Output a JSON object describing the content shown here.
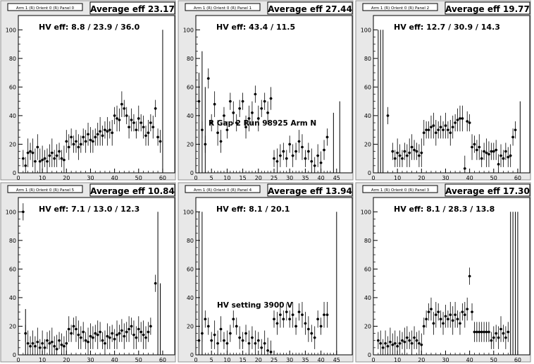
{
  "chart_data": [
    {
      "type": "scatter",
      "label": "Arm 1 (R) Orient 0 (R) Panel 0",
      "title": "Average eff 23.17",
      "hv_text": "HV eff:   8.8 / 23.9 / 36.0",
      "xlim": [
        0,
        65
      ],
      "ylim": [
        0,
        110
      ],
      "xticks": [
        0,
        10,
        20,
        30,
        40,
        50,
        60
      ],
      "yticks": [
        0,
        20,
        40,
        60,
        80,
        100
      ],
      "points": [
        [
          2,
          10
        ],
        [
          3,
          5
        ],
        [
          4,
          14
        ],
        [
          5,
          15
        ],
        [
          6,
          14
        ],
        [
          7,
          8
        ],
        [
          8,
          18
        ],
        [
          9,
          8
        ],
        [
          10,
          9
        ],
        [
          11,
          10
        ],
        [
          12,
          8
        ],
        [
          13,
          12
        ],
        [
          14,
          14
        ],
        [
          15,
          10
        ],
        [
          16,
          12
        ],
        [
          17,
          15
        ],
        [
          18,
          10
        ],
        [
          19,
          9
        ],
        [
          20,
          22
        ],
        [
          21,
          18
        ],
        [
          22,
          25
        ],
        [
          23,
          20
        ],
        [
          24,
          22
        ],
        [
          25,
          18
        ],
        [
          26,
          20
        ],
        [
          27,
          25
        ],
        [
          28,
          22
        ],
        [
          29,
          27
        ],
        [
          30,
          23
        ],
        [
          31,
          22
        ],
        [
          32,
          25
        ],
        [
          33,
          27
        ],
        [
          34,
          29
        ],
        [
          35,
          26
        ],
        [
          36,
          30
        ],
        [
          37,
          29
        ],
        [
          38,
          30
        ],
        [
          39,
          28
        ],
        [
          40,
          40
        ],
        [
          41,
          38
        ],
        [
          42,
          37
        ],
        [
          43,
          48
        ],
        [
          44,
          45
        ],
        [
          45,
          40
        ],
        [
          46,
          32
        ],
        [
          47,
          37
        ],
        [
          48,
          35
        ],
        [
          49,
          30
        ],
        [
          50,
          38
        ],
        [
          51,
          35
        ],
        [
          52,
          32
        ],
        [
          53,
          26
        ],
        [
          54,
          28
        ],
        [
          55,
          35
        ],
        [
          56,
          32
        ],
        [
          57,
          45
        ],
        [
          58,
          25
        ],
        [
          59,
          22
        ]
      ],
      "tall_bars": [
        [
          60,
          0,
          100
        ]
      ]
    },
    {
      "type": "scatter",
      "label": "Arm 1 (R) Orient 0 (R) Panel 1",
      "title": "Average eff 27.44",
      "hv_text": "HV eff:   43.4 / 11.5",
      "annotation": "R Gap 2 Run 98925 Arm N",
      "xlim": [
        0,
        50
      ],
      "ylim": [
        0,
        110
      ],
      "xticks": [
        0,
        5,
        10,
        15,
        20,
        25,
        30,
        35,
        40,
        45
      ],
      "yticks": [
        0,
        20,
        40,
        60,
        80,
        100
      ],
      "points": [
        [
          1,
          50
        ],
        [
          2,
          30
        ],
        [
          3,
          20
        ],
        [
          4,
          66
        ],
        [
          5,
          35
        ],
        [
          6,
          48
        ],
        [
          7,
          28
        ],
        [
          8,
          22
        ],
        [
          9,
          40
        ],
        [
          10,
          30
        ],
        [
          11,
          50
        ],
        [
          12,
          42
        ],
        [
          13,
          35
        ],
        [
          14,
          45
        ],
        [
          15,
          50
        ],
        [
          16,
          32
        ],
        [
          17,
          38
        ],
        [
          18,
          42
        ],
        [
          19,
          55
        ],
        [
          20,
          38
        ],
        [
          21,
          45
        ],
        [
          22,
          50
        ],
        [
          23,
          42
        ],
        [
          24,
          52
        ],
        [
          25,
          10
        ],
        [
          26,
          8
        ],
        [
          27,
          12
        ],
        [
          28,
          15
        ],
        [
          29,
          10
        ],
        [
          30,
          20
        ],
        [
          31,
          12
        ],
        [
          32,
          15
        ],
        [
          33,
          22
        ],
        [
          34,
          18
        ],
        [
          35,
          10
        ],
        [
          36,
          15
        ],
        [
          37,
          8
        ],
        [
          38,
          5
        ],
        [
          39,
          12
        ],
        [
          40,
          7
        ],
        [
          41,
          16
        ],
        [
          42,
          25
        ]
      ],
      "tall_bars": [
        [
          1,
          0,
          70
        ],
        [
          2,
          0,
          85
        ],
        [
          3,
          0,
          60
        ],
        [
          46,
          0,
          50
        ],
        [
          44,
          0,
          42
        ]
      ]
    },
    {
      "type": "scatter",
      "label": "Arm 1 (R) Orient 0 (R) Panel 2",
      "title": "Average eff 19.77",
      "hv_text": "HV eff:   12.7 / 30.9 / 14.3",
      "xlim": [
        0,
        65
      ],
      "ylim": [
        0,
        110
      ],
      "xticks": [
        0,
        10,
        20,
        30,
        40,
        50,
        60
      ],
      "yticks": [
        0,
        20,
        40,
        60,
        80,
        100
      ],
      "points": [
        [
          6,
          40
        ],
        [
          8,
          15
        ],
        [
          9,
          10
        ],
        [
          10,
          14
        ],
        [
          11,
          12
        ],
        [
          12,
          10
        ],
        [
          13,
          15
        ],
        [
          14,
          12
        ],
        [
          15,
          14
        ],
        [
          16,
          18
        ],
        [
          17,
          16
        ],
        [
          18,
          15
        ],
        [
          19,
          12
        ],
        [
          20,
          14
        ],
        [
          21,
          28
        ],
        [
          22,
          30
        ],
        [
          23,
          30
        ],
        [
          24,
          32
        ],
        [
          25,
          33
        ],
        [
          26,
          28
        ],
        [
          27,
          30
        ],
        [
          28,
          32
        ],
        [
          29,
          30
        ],
        [
          30,
          33
        ],
        [
          31,
          30
        ],
        [
          32,
          28
        ],
        [
          33,
          32
        ],
        [
          34,
          35
        ],
        [
          35,
          37
        ],
        [
          36,
          38
        ],
        [
          37,
          38
        ],
        [
          38,
          3
        ],
        [
          39,
          36
        ],
        [
          40,
          35
        ],
        [
          41,
          18
        ],
        [
          42,
          20
        ],
        [
          43,
          16
        ],
        [
          44,
          18
        ],
        [
          45,
          10
        ],
        [
          46,
          15
        ],
        [
          47,
          14
        ],
        [
          48,
          13
        ],
        [
          49,
          15
        ],
        [
          50,
          15
        ],
        [
          51,
          16
        ],
        [
          52,
          6
        ],
        [
          53,
          12
        ],
        [
          54,
          10
        ],
        [
          55,
          15
        ],
        [
          56,
          11
        ],
        [
          57,
          12
        ],
        [
          58,
          25
        ],
        [
          59,
          30
        ]
      ],
      "tall_bars": [
        [
          2,
          0,
          100
        ],
        [
          3,
          0,
          100
        ],
        [
          4,
          0,
          100
        ],
        [
          61,
          0,
          50
        ]
      ]
    },
    {
      "type": "scatter",
      "label": "Arm 1 (R) Orient 0 (R) Panel 5",
      "title": "Average eff 10.84",
      "hv_text": "HV eff:   7.1 / 13.0 / 12.3",
      "xlim": [
        0,
        65
      ],
      "ylim": [
        0,
        110
      ],
      "xticks": [
        0,
        10,
        20,
        30,
        40,
        50,
        60
      ],
      "yticks": [
        0,
        20,
        40,
        60,
        80,
        100
      ],
      "points": [
        [
          2,
          100
        ],
        [
          3,
          15
        ],
        [
          4,
          8
        ],
        [
          5,
          6
        ],
        [
          6,
          8
        ],
        [
          7,
          6
        ],
        [
          8,
          9
        ],
        [
          9,
          5
        ],
        [
          10,
          8
        ],
        [
          11,
          5
        ],
        [
          12,
          10
        ],
        [
          13,
          8
        ],
        [
          14,
          9
        ],
        [
          15,
          6
        ],
        [
          16,
          4
        ],
        [
          17,
          10
        ],
        [
          18,
          7
        ],
        [
          19,
          6
        ],
        [
          20,
          8
        ],
        [
          21,
          18
        ],
        [
          22,
          15
        ],
        [
          23,
          20
        ],
        [
          24,
          18
        ],
        [
          25,
          14
        ],
        [
          26,
          12
        ],
        [
          27,
          16
        ],
        [
          28,
          10
        ],
        [
          29,
          9
        ],
        [
          30,
          13
        ],
        [
          31,
          12
        ],
        [
          32,
          15
        ],
        [
          33,
          14
        ],
        [
          34,
          16
        ],
        [
          35,
          10
        ],
        [
          36,
          8
        ],
        [
          37,
          13
        ],
        [
          38,
          12
        ],
        [
          39,
          15
        ],
        [
          40,
          11
        ],
        [
          41,
          14
        ],
        [
          42,
          15
        ],
        [
          43,
          17
        ],
        [
          44,
          13
        ],
        [
          45,
          16
        ],
        [
          46,
          18
        ],
        [
          47,
          20
        ],
        [
          48,
          14
        ],
        [
          49,
          12
        ],
        [
          50,
          18
        ],
        [
          51,
          16
        ],
        [
          52,
          14
        ],
        [
          53,
          12
        ],
        [
          54,
          16
        ],
        [
          55,
          20
        ],
        [
          57,
          50
        ]
      ],
      "tall_bars": [
        [
          58,
          0,
          100
        ],
        [
          59,
          0,
          50
        ],
        [
          3,
          0,
          32
        ]
      ]
    },
    {
      "type": "scatter",
      "label": "Arm 1 (R) Orient 0 (R) Panel 4",
      "title": "Average eff 13.94",
      "hv_text": "HV eff:   8.1 / 20.1",
      "annotation": "HV setting 3900 V",
      "xlim": [
        0,
        50
      ],
      "ylim": [
        0,
        110
      ],
      "xticks": [
        0,
        5,
        10,
        15,
        20,
        25,
        30,
        35,
        40,
        45
      ],
      "yticks": [
        0,
        20,
        40,
        60,
        80,
        100
      ],
      "points": [
        [
          1,
          10
        ],
        [
          2,
          15
        ],
        [
          3,
          25
        ],
        [
          4,
          20
        ],
        [
          5,
          10
        ],
        [
          6,
          14
        ],
        [
          7,
          8
        ],
        [
          8,
          18
        ],
        [
          9,
          10
        ],
        [
          10,
          8
        ],
        [
          11,
          15
        ],
        [
          12,
          25
        ],
        [
          13,
          20
        ],
        [
          14,
          12
        ],
        [
          15,
          10
        ],
        [
          16,
          15
        ],
        [
          17,
          8
        ],
        [
          18,
          12
        ],
        [
          19,
          8
        ],
        [
          20,
          10
        ],
        [
          21,
          5
        ],
        [
          22,
          8
        ],
        [
          23,
          3
        ],
        [
          24,
          2
        ],
        [
          25,
          25
        ],
        [
          26,
          22
        ],
        [
          27,
          28
        ],
        [
          28,
          25
        ],
        [
          29,
          30
        ],
        [
          30,
          25
        ],
        [
          31,
          28
        ],
        [
          32,
          20
        ],
        [
          33,
          30
        ],
        [
          34,
          28
        ],
        [
          35,
          22
        ],
        [
          36,
          18
        ],
        [
          37,
          15
        ],
        [
          38,
          12
        ],
        [
          39,
          25
        ],
        [
          40,
          20
        ],
        [
          41,
          28
        ],
        [
          42,
          28
        ]
      ],
      "tall_bars": [
        [
          1,
          0,
          100
        ],
        [
          2,
          0,
          100
        ],
        [
          45,
          0,
          100
        ]
      ]
    },
    {
      "type": "scatter",
      "label": "Arm 1 (R) Orient 0 (R) Panel 3",
      "title": "Average eff 17.30",
      "hv_text": "HV eff:   8.1 / 28.3 / 13.8",
      "xlim": [
        0,
        65
      ],
      "ylim": [
        0,
        110
      ],
      "xticks": [
        0,
        10,
        20,
        30,
        40,
        50,
        60
      ],
      "yticks": [
        0,
        20,
        40,
        60,
        80,
        100
      ],
      "points": [
        [
          2,
          10
        ],
        [
          3,
          8
        ],
        [
          4,
          5
        ],
        [
          5,
          8
        ],
        [
          6,
          6
        ],
        [
          7,
          9
        ],
        [
          8,
          7
        ],
        [
          9,
          8
        ],
        [
          10,
          6
        ],
        [
          11,
          8
        ],
        [
          12,
          10
        ],
        [
          13,
          9
        ],
        [
          14,
          12
        ],
        [
          15,
          10
        ],
        [
          16,
          8
        ],
        [
          17,
          12
        ],
        [
          18,
          10
        ],
        [
          19,
          8
        ],
        [
          20,
          7
        ],
        [
          21,
          20
        ],
        [
          22,
          25
        ],
        [
          23,
          30
        ],
        [
          24,
          32
        ],
        [
          25,
          22
        ],
        [
          26,
          28
        ],
        [
          27,
          30
        ],
        [
          28,
          25
        ],
        [
          29,
          22
        ],
        [
          30,
          27
        ],
        [
          31,
          25
        ],
        [
          32,
          28
        ],
        [
          33,
          24
        ],
        [
          34,
          28
        ],
        [
          35,
          25
        ],
        [
          36,
          22
        ],
        [
          37,
          30
        ],
        [
          38,
          28
        ],
        [
          39,
          32
        ],
        [
          40,
          55
        ],
        [
          41,
          30
        ],
        [
          42,
          16
        ],
        [
          43,
          16
        ],
        [
          44,
          16
        ],
        [
          45,
          16
        ],
        [
          46,
          16
        ],
        [
          47,
          16
        ],
        [
          48,
          16
        ],
        [
          49,
          10
        ],
        [
          50,
          12
        ],
        [
          51,
          15
        ],
        [
          52,
          12
        ],
        [
          53,
          18
        ],
        [
          54,
          15
        ],
        [
          55,
          12
        ],
        [
          56,
          16
        ]
      ],
      "tall_bars": [
        [
          57,
          0,
          100
        ],
        [
          58,
          0,
          100
        ],
        [
          59,
          0,
          100
        ],
        [
          60,
          0,
          100
        ]
      ]
    }
  ]
}
